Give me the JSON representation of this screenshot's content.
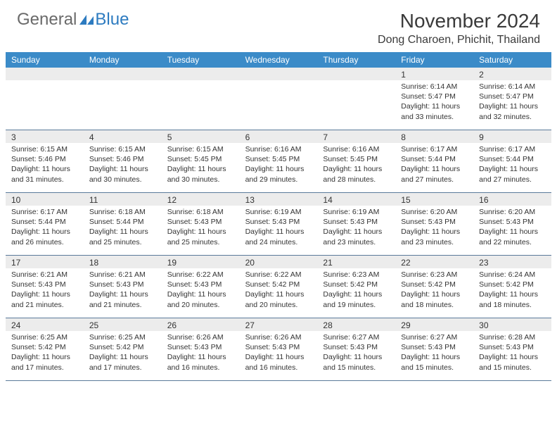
{
  "logo": {
    "general": "General",
    "blue": "Blue"
  },
  "title": "November 2024",
  "location": "Dong Charoen, Phichit, Thailand",
  "colors": {
    "header_bg": "#3b8bc8",
    "header_text": "#ffffff",
    "daynum_bg": "#ececec",
    "border": "#5a7a9a",
    "logo_gray": "#6a6a6a",
    "logo_blue": "#2d7bc0"
  },
  "day_names": [
    "Sunday",
    "Monday",
    "Tuesday",
    "Wednesday",
    "Thursday",
    "Friday",
    "Saturday"
  ],
  "weeks": [
    [
      {
        "day": "",
        "sunrise": "",
        "sunset": "",
        "daylight": ""
      },
      {
        "day": "",
        "sunrise": "",
        "sunset": "",
        "daylight": ""
      },
      {
        "day": "",
        "sunrise": "",
        "sunset": "",
        "daylight": ""
      },
      {
        "day": "",
        "sunrise": "",
        "sunset": "",
        "daylight": ""
      },
      {
        "day": "",
        "sunrise": "",
        "sunset": "",
        "daylight": ""
      },
      {
        "day": "1",
        "sunrise": "Sunrise: 6:14 AM",
        "sunset": "Sunset: 5:47 PM",
        "daylight": "Daylight: 11 hours and 33 minutes."
      },
      {
        "day": "2",
        "sunrise": "Sunrise: 6:14 AM",
        "sunset": "Sunset: 5:47 PM",
        "daylight": "Daylight: 11 hours and 32 minutes."
      }
    ],
    [
      {
        "day": "3",
        "sunrise": "Sunrise: 6:15 AM",
        "sunset": "Sunset: 5:46 PM",
        "daylight": "Daylight: 11 hours and 31 minutes."
      },
      {
        "day": "4",
        "sunrise": "Sunrise: 6:15 AM",
        "sunset": "Sunset: 5:46 PM",
        "daylight": "Daylight: 11 hours and 30 minutes."
      },
      {
        "day": "5",
        "sunrise": "Sunrise: 6:15 AM",
        "sunset": "Sunset: 5:45 PM",
        "daylight": "Daylight: 11 hours and 30 minutes."
      },
      {
        "day": "6",
        "sunrise": "Sunrise: 6:16 AM",
        "sunset": "Sunset: 5:45 PM",
        "daylight": "Daylight: 11 hours and 29 minutes."
      },
      {
        "day": "7",
        "sunrise": "Sunrise: 6:16 AM",
        "sunset": "Sunset: 5:45 PM",
        "daylight": "Daylight: 11 hours and 28 minutes."
      },
      {
        "day": "8",
        "sunrise": "Sunrise: 6:17 AM",
        "sunset": "Sunset: 5:44 PM",
        "daylight": "Daylight: 11 hours and 27 minutes."
      },
      {
        "day": "9",
        "sunrise": "Sunrise: 6:17 AM",
        "sunset": "Sunset: 5:44 PM",
        "daylight": "Daylight: 11 hours and 27 minutes."
      }
    ],
    [
      {
        "day": "10",
        "sunrise": "Sunrise: 6:17 AM",
        "sunset": "Sunset: 5:44 PM",
        "daylight": "Daylight: 11 hours and 26 minutes."
      },
      {
        "day": "11",
        "sunrise": "Sunrise: 6:18 AM",
        "sunset": "Sunset: 5:44 PM",
        "daylight": "Daylight: 11 hours and 25 minutes."
      },
      {
        "day": "12",
        "sunrise": "Sunrise: 6:18 AM",
        "sunset": "Sunset: 5:43 PM",
        "daylight": "Daylight: 11 hours and 25 minutes."
      },
      {
        "day": "13",
        "sunrise": "Sunrise: 6:19 AM",
        "sunset": "Sunset: 5:43 PM",
        "daylight": "Daylight: 11 hours and 24 minutes."
      },
      {
        "day": "14",
        "sunrise": "Sunrise: 6:19 AM",
        "sunset": "Sunset: 5:43 PM",
        "daylight": "Daylight: 11 hours and 23 minutes."
      },
      {
        "day": "15",
        "sunrise": "Sunrise: 6:20 AM",
        "sunset": "Sunset: 5:43 PM",
        "daylight": "Daylight: 11 hours and 23 minutes."
      },
      {
        "day": "16",
        "sunrise": "Sunrise: 6:20 AM",
        "sunset": "Sunset: 5:43 PM",
        "daylight": "Daylight: 11 hours and 22 minutes."
      }
    ],
    [
      {
        "day": "17",
        "sunrise": "Sunrise: 6:21 AM",
        "sunset": "Sunset: 5:43 PM",
        "daylight": "Daylight: 11 hours and 21 minutes."
      },
      {
        "day": "18",
        "sunrise": "Sunrise: 6:21 AM",
        "sunset": "Sunset: 5:43 PM",
        "daylight": "Daylight: 11 hours and 21 minutes."
      },
      {
        "day": "19",
        "sunrise": "Sunrise: 6:22 AM",
        "sunset": "Sunset: 5:43 PM",
        "daylight": "Daylight: 11 hours and 20 minutes."
      },
      {
        "day": "20",
        "sunrise": "Sunrise: 6:22 AM",
        "sunset": "Sunset: 5:42 PM",
        "daylight": "Daylight: 11 hours and 20 minutes."
      },
      {
        "day": "21",
        "sunrise": "Sunrise: 6:23 AM",
        "sunset": "Sunset: 5:42 PM",
        "daylight": "Daylight: 11 hours and 19 minutes."
      },
      {
        "day": "22",
        "sunrise": "Sunrise: 6:23 AM",
        "sunset": "Sunset: 5:42 PM",
        "daylight": "Daylight: 11 hours and 18 minutes."
      },
      {
        "day": "23",
        "sunrise": "Sunrise: 6:24 AM",
        "sunset": "Sunset: 5:42 PM",
        "daylight": "Daylight: 11 hours and 18 minutes."
      }
    ],
    [
      {
        "day": "24",
        "sunrise": "Sunrise: 6:25 AM",
        "sunset": "Sunset: 5:42 PM",
        "daylight": "Daylight: 11 hours and 17 minutes."
      },
      {
        "day": "25",
        "sunrise": "Sunrise: 6:25 AM",
        "sunset": "Sunset: 5:42 PM",
        "daylight": "Daylight: 11 hours and 17 minutes."
      },
      {
        "day": "26",
        "sunrise": "Sunrise: 6:26 AM",
        "sunset": "Sunset: 5:43 PM",
        "daylight": "Daylight: 11 hours and 16 minutes."
      },
      {
        "day": "27",
        "sunrise": "Sunrise: 6:26 AM",
        "sunset": "Sunset: 5:43 PM",
        "daylight": "Daylight: 11 hours and 16 minutes."
      },
      {
        "day": "28",
        "sunrise": "Sunrise: 6:27 AM",
        "sunset": "Sunset: 5:43 PM",
        "daylight": "Daylight: 11 hours and 15 minutes."
      },
      {
        "day": "29",
        "sunrise": "Sunrise: 6:27 AM",
        "sunset": "Sunset: 5:43 PM",
        "daylight": "Daylight: 11 hours and 15 minutes."
      },
      {
        "day": "30",
        "sunrise": "Sunrise: 6:28 AM",
        "sunset": "Sunset: 5:43 PM",
        "daylight": "Daylight: 11 hours and 15 minutes."
      }
    ]
  ]
}
